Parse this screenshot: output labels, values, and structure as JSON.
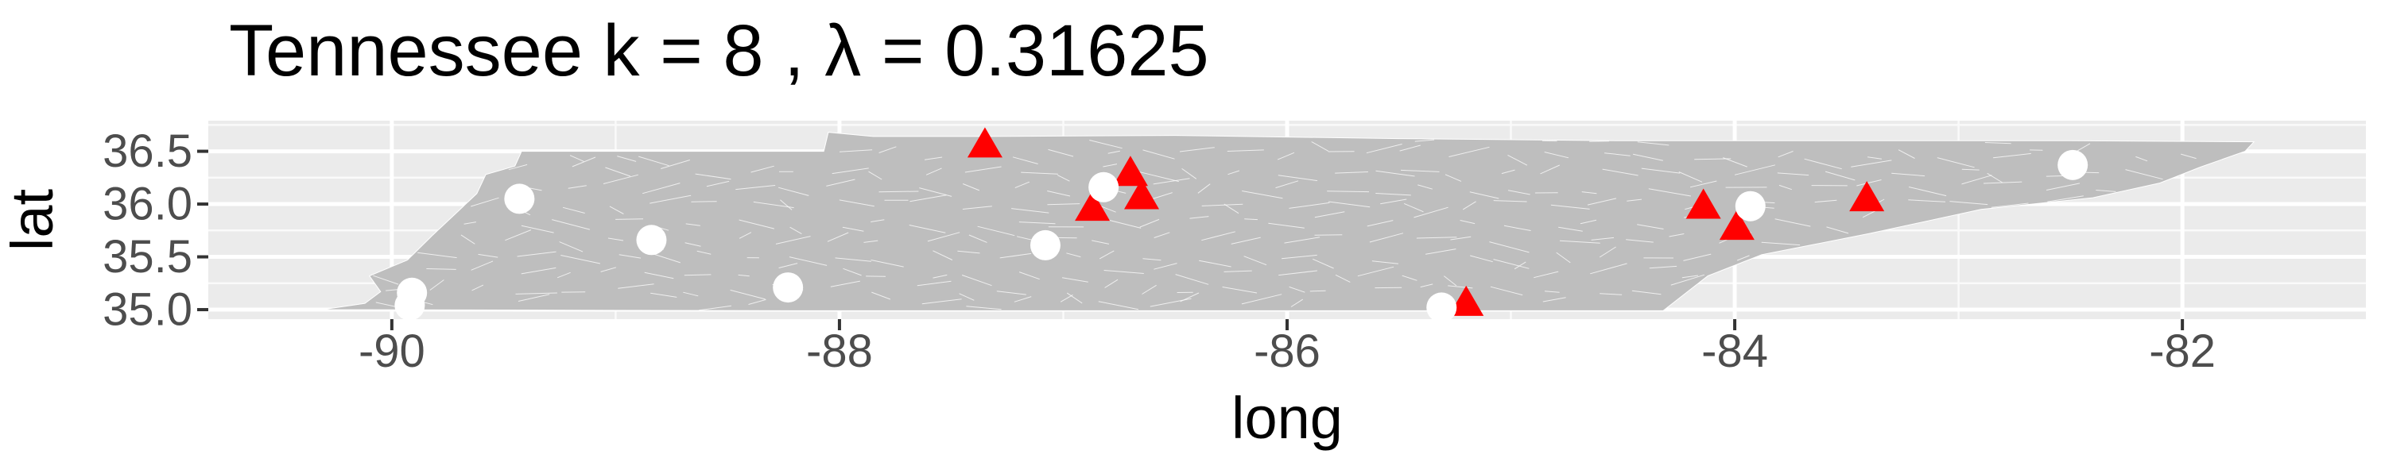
{
  "title": "Tennessee  k =  8 ,  λ  =  0.31625",
  "chart_data": {
    "type": "scatter",
    "title": "Tennessee  k =  8 ,  λ  =  0.31625",
    "xlabel": "long",
    "ylabel": "lat",
    "xlim": [
      -90.82,
      -81.18
    ],
    "ylim": [
      34.91,
      36.79
    ],
    "x_ticks": [
      -90,
      -88,
      -86,
      -84,
      -82
    ],
    "y_ticks": [
      35.0,
      35.5,
      36.0,
      36.5
    ],
    "x_tick_labels": [
      "-90",
      "-88",
      "-86",
      "-84",
      "-82"
    ],
    "y_tick_labels": [
      "35.0",
      "35.5",
      "36.0",
      "36.5"
    ],
    "grid": true,
    "legend": "none",
    "region_fill": "#bebebe",
    "panel_background": "#ebebeb",
    "series": [
      {
        "marker": "triangle",
        "color": "#ff0000",
        "points": [
          {
            "x": -87.35,
            "y": 36.55
          },
          {
            "x": -86.7,
            "y": 36.28
          },
          {
            "x": -86.65,
            "y": 36.06
          },
          {
            "x": -86.87,
            "y": 35.95
          },
          {
            "x": -84.14,
            "y": 35.97
          },
          {
            "x": -83.99,
            "y": 35.77
          },
          {
            "x": -83.41,
            "y": 36.04
          },
          {
            "x": -85.2,
            "y": 35.05
          }
        ]
      },
      {
        "marker": "circle",
        "color": "#ffffff",
        "points": [
          {
            "x": -89.43,
            "y": 36.05
          },
          {
            "x": -88.84,
            "y": 35.66
          },
          {
            "x": -88.23,
            "y": 35.21
          },
          {
            "x": -89.91,
            "y": 35.16
          },
          {
            "x": -89.92,
            "y": 35.04
          },
          {
            "x": -87.08,
            "y": 35.61
          },
          {
            "x": -86.82,
            "y": 36.16
          },
          {
            "x": -85.31,
            "y": 35.02
          },
          {
            "x": -83.93,
            "y": 35.98
          },
          {
            "x": -82.49,
            "y": 36.37
          }
        ]
      }
    ],
    "state_outline": [
      [
        -90.31,
        35.0
      ],
      [
        -90.12,
        35.06
      ],
      [
        -90.05,
        35.17
      ],
      [
        -90.1,
        35.32
      ],
      [
        -89.93,
        35.47
      ],
      [
        -89.82,
        35.7
      ],
      [
        -89.72,
        35.9
      ],
      [
        -89.62,
        36.1
      ],
      [
        -89.58,
        36.28
      ],
      [
        -89.45,
        36.36
      ],
      [
        -89.42,
        36.5
      ],
      [
        -88.07,
        36.5
      ],
      [
        -88.05,
        36.68
      ],
      [
        -87.85,
        36.64
      ],
      [
        -87.35,
        36.64
      ],
      [
        -86.5,
        36.65
      ],
      [
        -85.5,
        36.62
      ],
      [
        -84.5,
        36.6
      ],
      [
        -83.68,
        36.6
      ],
      [
        -82.5,
        36.6
      ],
      [
        -81.68,
        36.59
      ],
      [
        -81.72,
        36.5
      ],
      [
        -81.92,
        36.35
      ],
      [
        -82.1,
        36.2
      ],
      [
        -82.4,
        36.06
      ],
      [
        -82.9,
        35.95
      ],
      [
        -83.4,
        35.72
      ],
      [
        -83.88,
        35.52
      ],
      [
        -84.12,
        35.32
      ],
      [
        -84.32,
        34.99
      ],
      [
        -86.0,
        34.99
      ],
      [
        -88.2,
        34.99
      ],
      [
        -90.31,
        35.0
      ]
    ]
  }
}
